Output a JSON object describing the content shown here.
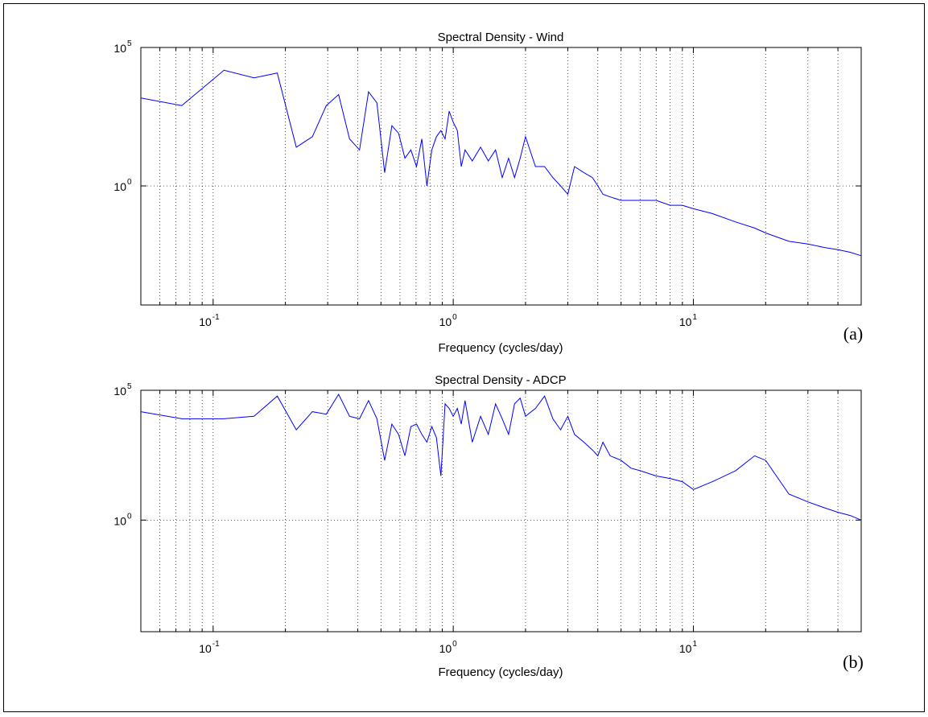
{
  "chart_data": [
    {
      "type": "line",
      "panel_label": "(a)",
      "title": "Spectral Density - Wind",
      "xlabel": "Frequency (cycles/day)",
      "ylabel": "",
      "xscale": "log",
      "yscale": "log",
      "xlim": [
        0.05,
        50
      ],
      "ylim": [
        5.01e-05,
        100000
      ],
      "xticks": [
        {
          "base": "10",
          "exp": "-1"
        },
        {
          "base": "10",
          "exp": "0"
        },
        {
          "base": "10",
          "exp": "1"
        }
      ],
      "yticks": [
        {
          "base": "10",
          "exp": "0"
        },
        {
          "base": "10",
          "exp": "5"
        }
      ],
      "grid": true,
      "color": "#0000ff",
      "series": [
        {
          "x": [
            0.05,
            0.074,
            0.111,
            0.148,
            0.185,
            0.222,
            0.259,
            0.296,
            0.333,
            0.37,
            0.407,
            0.444,
            0.481,
            0.518,
            0.555,
            0.592,
            0.629,
            0.666,
            0.703,
            0.74,
            0.777,
            0.814,
            0.851,
            0.888,
            0.925,
            0.962,
            1.0,
            1.04,
            1.08,
            1.12,
            1.2,
            1.3,
            1.4,
            1.5,
            1.6,
            1.7,
            1.8,
            1.9,
            2.0,
            2.2,
            2.4,
            2.6,
            2.8,
            3.0,
            3.2,
            3.5,
            3.8,
            4.0,
            4.2,
            4.5,
            5,
            5.5,
            6,
            7,
            8,
            9,
            10,
            12,
            15,
            18,
            20,
            25,
            30,
            35,
            40,
            45,
            50
          ],
          "y": [
            1500,
            800,
            15000,
            8000,
            12000,
            25,
            60,
            800,
            2000,
            50,
            20,
            2500,
            1000,
            3,
            150,
            80,
            10,
            20,
            5,
            50,
            1,
            20,
            60,
            100,
            50,
            500,
            200,
            100,
            5,
            20,
            8,
            25,
            8,
            20,
            2,
            10,
            2,
            10,
            60,
            5,
            5,
            2,
            1,
            0.5,
            5,
            3,
            2,
            1,
            0.5,
            0.4,
            0.3,
            0.3,
            0.3,
            0.3,
            0.2,
            0.2,
            0.15,
            0.1,
            0.05,
            0.03,
            0.02,
            0.01,
            0.008,
            0.006,
            0.005,
            0.004,
            0.003
          ]
        }
      ]
    },
    {
      "type": "line",
      "panel_label": "(b)",
      "title": "Spectral Density - ADCP",
      "xlabel": "Frequency (cycles/day)",
      "ylabel": "",
      "xscale": "log",
      "yscale": "log",
      "xlim": [
        0.05,
        50
      ],
      "ylim": [
        5.01e-05,
        100000
      ],
      "xticks": [
        {
          "base": "10",
          "exp": "-1"
        },
        {
          "base": "10",
          "exp": "0"
        },
        {
          "base": "10",
          "exp": "1"
        }
      ],
      "yticks": [
        {
          "base": "10",
          "exp": "0"
        },
        {
          "base": "10",
          "exp": "5"
        }
      ],
      "grid": true,
      "color": "#0000ff",
      "series": [
        {
          "x": [
            0.05,
            0.074,
            0.111,
            0.148,
            0.185,
            0.222,
            0.259,
            0.296,
            0.333,
            0.37,
            0.407,
            0.444,
            0.481,
            0.518,
            0.555,
            0.592,
            0.629,
            0.666,
            0.703,
            0.74,
            0.777,
            0.814,
            0.851,
            0.888,
            0.925,
            0.962,
            1.0,
            1.04,
            1.08,
            1.12,
            1.2,
            1.3,
            1.4,
            1.5,
            1.6,
            1.7,
            1.8,
            1.9,
            2.0,
            2.2,
            2.4,
            2.6,
            2.8,
            3.0,
            3.2,
            3.5,
            3.8,
            4.0,
            4.2,
            4.5,
            5,
            5.5,
            6,
            7,
            8,
            9,
            10,
            12,
            15,
            18,
            20,
            25,
            30,
            35,
            40,
            45,
            50
          ],
          "y": [
            15000,
            8000,
            8000,
            10000,
            60000,
            3000,
            15000,
            12000,
            70000,
            10000,
            8000,
            40000,
            8000,
            200,
            5000,
            2000,
            300,
            4000,
            5000,
            2000,
            1000,
            4000,
            1500,
            50,
            30000,
            20000,
            10000,
            20000,
            5000,
            40000,
            1000,
            10000,
            2000,
            30000,
            8000,
            2000,
            30000,
            50000,
            10000,
            20000,
            60000,
            8000,
            3000,
            10000,
            2000,
            1000,
            500,
            300,
            1000,
            300,
            200,
            100,
            80,
            50,
            40,
            30,
            15,
            30,
            80,
            300,
            200,
            10,
            5,
            3,
            2,
            1.5,
            1
          ]
        }
      ]
    }
  ]
}
